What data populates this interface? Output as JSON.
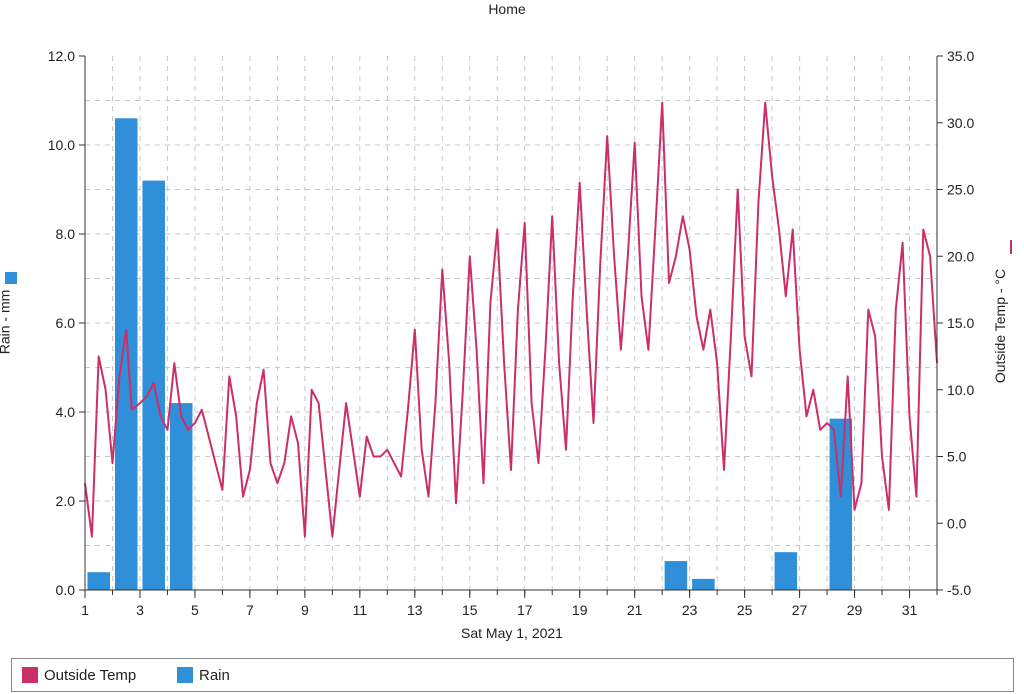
{
  "chart_data": {
    "type": "bar+line",
    "title": "Home",
    "xlabel": "Sat May 1, 2021",
    "ylabel_left": "Rain - mm",
    "ylabel_right": "Outside Temp - °C",
    "x_ticks": [
      "1",
      "3",
      "5",
      "7",
      "9",
      "11",
      "13",
      "15",
      "17",
      "19",
      "21",
      "23",
      "25",
      "27",
      "29",
      "31"
    ],
    "xlim": [
      1,
      32
    ],
    "y_left_ticks": [
      "0.0",
      "2.0",
      "4.0",
      "6.0",
      "8.0",
      "10.0",
      "12.0"
    ],
    "ylim_left": [
      0,
      12
    ],
    "y_right_ticks": [
      "-5.0",
      "0.0",
      "5.0",
      "10.0",
      "15.0",
      "20.0",
      "25.0",
      "30.0",
      "35.0"
    ],
    "ylim_right": [
      -5,
      35
    ],
    "grid": true,
    "legend_position": "bottom",
    "colors": {
      "temp": "#cc2e6a",
      "rain": "#2f8fd8"
    },
    "rain": {
      "name": "Rain",
      "x": [
        1.5,
        2.5,
        3.5,
        4.5,
        22.5,
        23.5,
        26.5,
        28.5
      ],
      "values": [
        0.4,
        10.6,
        9.2,
        4.2,
        0.65,
        0.25,
        0.85,
        3.85
      ]
    },
    "temp": {
      "name": "Outside Temp",
      "x": [
        1.0,
        1.25,
        1.5,
        1.75,
        2.0,
        2.25,
        2.5,
        2.7,
        3.0,
        3.25,
        3.5,
        3.75,
        4.0,
        4.25,
        4.5,
        4.75,
        5.0,
        5.25,
        5.5,
        5.75,
        6.0,
        6.25,
        6.5,
        6.75,
        7.0,
        7.25,
        7.5,
        7.75,
        8.0,
        8.25,
        8.5,
        8.75,
        9.0,
        9.25,
        9.5,
        9.75,
        10.0,
        10.25,
        10.5,
        10.75,
        11.0,
        11.25,
        11.5,
        11.75,
        12.0,
        12.25,
        12.5,
        12.75,
        13.0,
        13.25,
        13.5,
        13.75,
        14.0,
        14.25,
        14.5,
        14.75,
        15.0,
        15.25,
        15.5,
        15.75,
        16.0,
        16.25,
        16.5,
        16.75,
        17.0,
        17.25,
        17.5,
        17.75,
        18.0,
        18.25,
        18.5,
        18.75,
        19.0,
        19.25,
        19.5,
        19.75,
        20.0,
        20.25,
        20.5,
        20.75,
        21.0,
        21.25,
        21.5,
        21.75,
        22.0,
        22.25,
        22.5,
        22.75,
        23.0,
        23.25,
        23.5,
        23.75,
        24.0,
        24.25,
        24.5,
        24.75,
        25.0,
        25.25,
        25.5,
        25.75,
        26.0,
        26.25,
        26.5,
        26.75,
        27.0,
        27.25,
        27.5,
        27.75,
        28.0,
        28.25,
        28.5,
        28.75,
        29.0,
        29.25,
        29.5,
        29.75,
        30.0,
        30.25,
        30.5,
        30.75,
        31.0,
        31.25,
        31.5,
        31.75,
        32.0
      ],
      "values": [
        3.0,
        -1.0,
        12.5,
        10.0,
        4.5,
        11.0,
        14.5,
        8.5,
        9.0,
        9.5,
        10.5,
        8.0,
        7.0,
        12.0,
        8.0,
        7.0,
        7.5,
        8.5,
        6.5,
        4.5,
        2.5,
        11.0,
        8.0,
        2.0,
        4.0,
        9.0,
        11.5,
        4.5,
        3.0,
        4.5,
        8.0,
        6.0,
        -1.0,
        10.0,
        9.0,
        4.0,
        -1.0,
        4.0,
        9.0,
        5.5,
        2.0,
        6.5,
        5.0,
        5.0,
        5.5,
        4.5,
        3.5,
        8.5,
        14.5,
        5.5,
        2.0,
        9.0,
        19.0,
        12.0,
        1.5,
        10.0,
        20.0,
        13.0,
        3.0,
        16.5,
        22.0,
        12.0,
        4.0,
        16.0,
        22.5,
        9.0,
        4.5,
        13.0,
        23.0,
        12.0,
        5.5,
        17.0,
        25.5,
        16.0,
        7.5,
        19.5,
        29.0,
        20.0,
        13.0,
        20.0,
        28.5,
        17.0,
        13.0,
        22.0,
        31.5,
        18.0,
        20.0,
        23.0,
        20.5,
        15.5,
        13.0,
        16.0,
        12.0,
        4.0,
        14.0,
        25.0,
        14.0,
        11.0,
        24.0,
        31.5,
        26.0,
        22.0,
        17.0,
        22.0,
        13.0,
        8.0,
        10.0,
        7.0,
        7.5,
        7.0,
        2.0,
        11.0,
        1.0,
        3.0,
        16.0,
        14.0,
        5.0,
        1.0,
        16.0,
        21.0,
        8.0,
        2.0,
        22.0,
        20.0,
        12.0
      ]
    }
  }
}
